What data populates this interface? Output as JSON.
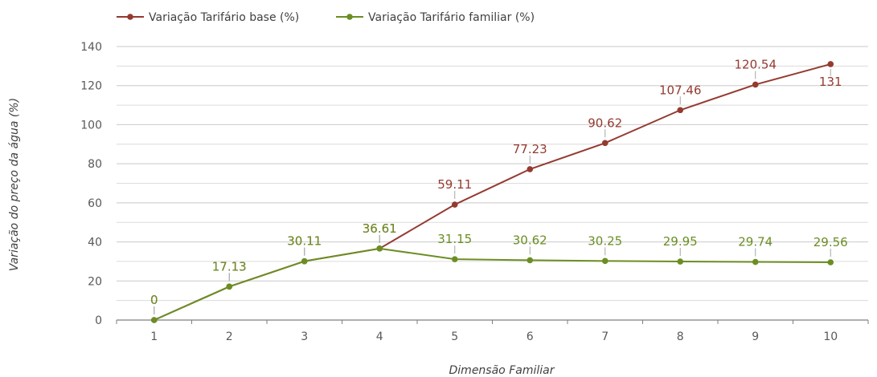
{
  "chart_data": {
    "type": "line",
    "xlabel": "Dimensão Familiar",
    "ylabel": "Variação do preço da água (%)",
    "ylim": [
      0,
      140
    ],
    "y_ticks": [
      0,
      20,
      40,
      60,
      80,
      100,
      120,
      140
    ],
    "x": [
      "1",
      "2",
      "3",
      "4",
      "5",
      "6",
      "7",
      "8",
      "9",
      "10"
    ],
    "grid": true,
    "legend_position": "top-left",
    "series": [
      {
        "name": "Variação Tarifário base (%)",
        "color": "#943a30",
        "values": [
          0,
          17.13,
          30.11,
          36.61,
          59.11,
          77.23,
          90.62,
          107.46,
          120.54,
          131
        ],
        "labels": [
          "0",
          "17.13",
          "30.11",
          "36.61",
          "59.11",
          "77.23",
          "90.62",
          "107.46",
          "120.54",
          "131"
        ]
      },
      {
        "name": "Variação Tarifário familiar (%)",
        "color": "#6b8e23",
        "values": [
          0,
          17.13,
          30.11,
          36.61,
          31.15,
          30.62,
          30.25,
          29.95,
          29.74,
          29.56
        ],
        "labels": [
          "0",
          "17.13",
          "30.11",
          "36.61",
          "31.15",
          "30.62",
          "30.25",
          "29.95",
          "29.74",
          "29.56"
        ]
      }
    ]
  }
}
